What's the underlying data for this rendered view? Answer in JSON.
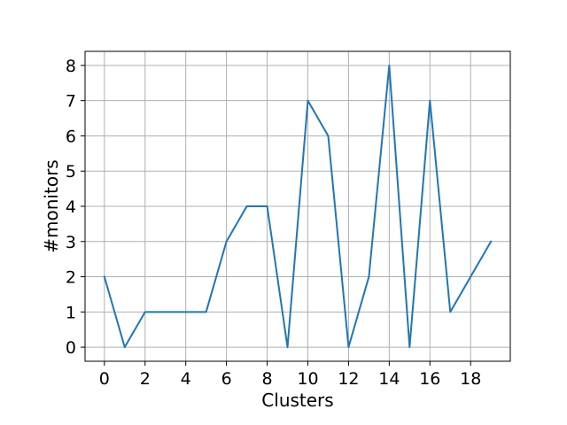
{
  "chart_data": {
    "type": "line",
    "title": "",
    "xlabel": "Clusters",
    "ylabel": "#monitors",
    "x": [
      0,
      1,
      2,
      3,
      4,
      5,
      6,
      7,
      8,
      9,
      10,
      11,
      12,
      13,
      14,
      15,
      16,
      17,
      18,
      19
    ],
    "series": [
      {
        "name": "",
        "values": [
          2,
          0,
          1,
          1,
          1,
          1,
          3,
          4,
          4,
          0,
          7,
          6,
          0,
          2,
          8,
          0,
          7,
          1,
          2,
          3
        ],
        "color": "#1f77b4"
      }
    ],
    "xlim": [
      -0.95,
      19.95
    ],
    "ylim": [
      -0.4,
      8.4
    ],
    "xticks": [
      0,
      2,
      4,
      6,
      8,
      10,
      12,
      14,
      16,
      18
    ],
    "yticks": [
      0,
      1,
      2,
      3,
      4,
      5,
      6,
      7,
      8
    ],
    "grid": true,
    "grid_color": "#b0b0b0"
  }
}
